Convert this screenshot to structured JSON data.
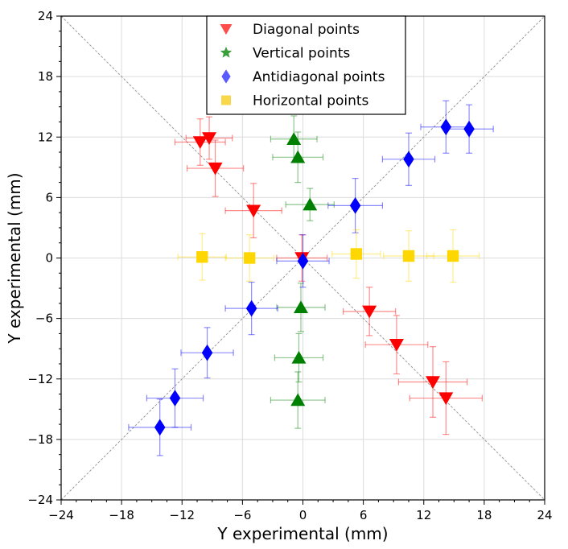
{
  "chart_data": {
    "type": "scatter",
    "title": "",
    "xlabel": "Y experimental (mm)",
    "ylabel": "Y experimental (mm)",
    "xlim": [
      -24,
      24
    ],
    "ylim": [
      -24,
      24
    ],
    "xticks": [
      -24,
      -18,
      -12,
      -6,
      0,
      6,
      12,
      18,
      24
    ],
    "yticks": [
      -24,
      -18,
      -12,
      -6,
      0,
      6,
      12,
      18,
      24
    ],
    "xtick_labels": [
      "−24",
      "−18",
      "−12",
      "−6",
      "0",
      "6",
      "12",
      "18",
      "24"
    ],
    "ytick_labels": [
      "−24",
      "−18",
      "−12",
      "−6",
      "0",
      "6",
      "12",
      "18",
      "24"
    ],
    "grid": true,
    "legend_position": "top-center",
    "reference_lines": [
      {
        "name": "diagonal",
        "from": [
          -24,
          24
        ],
        "to": [
          24,
          -24
        ],
        "style": "dashed",
        "color": "#9a9a9a"
      },
      {
        "name": "antidiagonal",
        "from": [
          -24,
          -24
        ],
        "to": [
          24,
          24
        ],
        "style": "dashed",
        "color": "#9a9a9a"
      }
    ],
    "series": [
      {
        "name": "Diagonal points",
        "marker": "triangle-down",
        "color": "#ff0000",
        "legend_color": "#ff4d4d",
        "points": [
          {
            "x": -10.2,
            "y": 11.5,
            "xerr": 2.5,
            "yerr": 2.3
          },
          {
            "x": -9.3,
            "y": 11.9,
            "xerr": 2.3,
            "yerr": 2.1
          },
          {
            "x": -8.7,
            "y": 8.9,
            "xerr": 2.8,
            "yerr": 2.8
          },
          {
            "x": -4.9,
            "y": 4.7,
            "xerr": 2.8,
            "yerr": 2.7
          },
          {
            "x": -0.1,
            "y": 0.0,
            "xerr": 2.5,
            "yerr": 2.3
          },
          {
            "x": 6.6,
            "y": -5.3,
            "xerr": 2.6,
            "yerr": 2.4
          },
          {
            "x": 9.3,
            "y": -8.6,
            "xerr": 3.1,
            "yerr": 2.9
          },
          {
            "x": 12.9,
            "y": -12.3,
            "xerr": 3.4,
            "yerr": 3.5
          },
          {
            "x": 14.2,
            "y": -13.9,
            "xerr": 3.6,
            "yerr": 3.6
          }
        ]
      },
      {
        "name": "Vertical points",
        "marker": "triangle-up",
        "legend_marker": "star",
        "color": "#008000",
        "legend_color": "#3a9e3a",
        "points": [
          {
            "x": -0.9,
            "y": 11.8,
            "xerr": 2.3,
            "yerr": 2.3
          },
          {
            "x": -0.5,
            "y": 10.0,
            "xerr": 2.5,
            "yerr": 2.5
          },
          {
            "x": 0.7,
            "y": 5.3,
            "xerr": 2.4,
            "yerr": 1.6
          },
          {
            "x": -0.2,
            "y": -4.9,
            "xerr": 2.4,
            "yerr": 2.4
          },
          {
            "x": -0.4,
            "y": -9.9,
            "xerr": 2.4,
            "yerr": 2.4
          },
          {
            "x": -0.5,
            "y": -14.1,
            "xerr": 2.7,
            "yerr": 2.8
          }
        ]
      },
      {
        "name": "Antidiagonal points",
        "marker": "diamond",
        "color": "#0000ff",
        "legend_color": "#5a5aff",
        "points": [
          {
            "x": -14.2,
            "y": -16.8,
            "xerr": 3.1,
            "yerr": 2.8
          },
          {
            "x": -12.7,
            "y": -13.9,
            "xerr": 2.8,
            "yerr": 2.9
          },
          {
            "x": -9.5,
            "y": -9.4,
            "xerr": 2.6,
            "yerr": 2.5
          },
          {
            "x": -5.1,
            "y": -5.0,
            "xerr": 2.6,
            "yerr": 2.6
          },
          {
            "x": 0.0,
            "y": -0.3,
            "xerr": 2.6,
            "yerr": 2.6
          },
          {
            "x": 5.2,
            "y": 5.2,
            "xerr": 2.7,
            "yerr": 2.7
          },
          {
            "x": 10.5,
            "y": 9.8,
            "xerr": 2.6,
            "yerr": 2.6
          },
          {
            "x": 14.2,
            "y": 13.0,
            "xerr": 2.5,
            "yerr": 2.6
          },
          {
            "x": 16.5,
            "y": 12.8,
            "xerr": 2.4,
            "yerr": 2.4
          }
        ]
      },
      {
        "name": "Horizontal points",
        "marker": "square",
        "color": "#ffd700",
        "legend_color": "#f8d848",
        "points": [
          {
            "x": -10.0,
            "y": 0.1,
            "xerr": 2.4,
            "yerr": 2.3
          },
          {
            "x": -5.3,
            "y": 0.0,
            "xerr": 2.4,
            "yerr": 2.3
          },
          {
            "x": 5.3,
            "y": 0.4,
            "xerr": 2.4,
            "yerr": 2.4
          },
          {
            "x": 10.5,
            "y": 0.2,
            "xerr": 2.5,
            "yerr": 2.5
          },
          {
            "x": 14.9,
            "y": 0.2,
            "xerr": 2.6,
            "yerr": 2.6
          }
        ]
      }
    ]
  }
}
